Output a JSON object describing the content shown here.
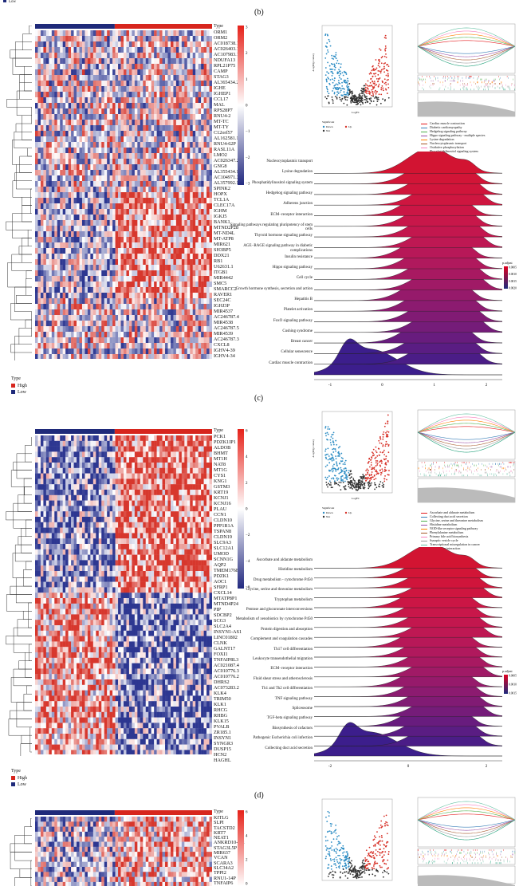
{
  "panels": [
    {
      "label": "(b)",
      "heatmap_type_label": "Type",
      "genes": [
        "ORM1",
        "ORM2",
        "AC018738.1",
        "AC026403.1",
        "AC107983.1",
        "NDUFA13",
        "RPL21P75",
        "CAMP",
        "STAG3",
        "AL365434.2",
        "IGHE",
        "IGHEP1",
        "CCL17",
        "MAL",
        "RPS28P7",
        "RNU4-2",
        "MT-TC",
        "MT-TY",
        "C12orf57",
        "AL162581.1",
        "RNU4-62P",
        "RASL11A",
        "LMO2",
        "AC026347.2",
        "GNG8",
        "AL355434.1",
        "AC104971.3",
        "AL357992.1",
        "SPINK2",
        "HOPX",
        "TCL1A",
        "CLEC17A",
        "IGHM",
        "IGKJ5",
        "BANK1",
        "MTND2P28",
        "MT-ND4L",
        "MT-ATP8",
        "MIR621",
        "SH3BP5",
        "DDX21",
        "RB1",
        "U62631.1",
        "ITGB1",
        "MIR4442",
        "SMC5",
        "SMARCC2",
        "RAVER1",
        "SEC24C",
        "IGHJ3P",
        "MIR4537",
        "AC246787.4",
        "MIR4538",
        "AC246787.5",
        "MIR4539",
        "AC246787.3",
        "CXCL8",
        "IGHV4-39",
        "IGHV4-34"
      ],
      "colorbar_ticks": [
        "3",
        "2",
        "1",
        "0",
        "−1",
        "−2",
        "−3"
      ],
      "legend": {
        "title": "Type",
        "items": [
          "High",
          "Low"
        ]
      },
      "volcano": {
        "xlabel": "LogFC",
        "ylabel": "-Log10(p value)",
        "legend_title": "Significant",
        "items": [
          "Down",
          "Not",
          "Up"
        ]
      },
      "gsea_legend": [
        "Cardiac muscle contraction",
        "Diabetic cardiomyopathy",
        "Hedgehog signaling pathway",
        "Hippo signaling pathway - multiple species",
        "Lysine degradation",
        "Nucleocytoplasmic transport",
        "Oxidative phosphorylation",
        "Phosphatidylinositol signaling system",
        "Proteasome",
        "Ribosome"
      ],
      "ridge": {
        "pathways": [
          "Nucleocytoplasmic transport",
          "Lysine degradation",
          "Phosphatidylinositol signaling system",
          "Hedgehog signaling pathway",
          "Adherens junction",
          "ECM−receptor interaction",
          "Signaling pathways regulating pluripotency of stem cells",
          "Thyroid hormone signaling pathway",
          "AGE−RAGE signaling pathway in diabetic complications",
          "Insulin resistance",
          "Hippo signaling pathway",
          "Cell cycle",
          "Growth hormone synthesis, secretion and action",
          "Hepatitis B",
          "Platelet activation",
          "FoxO signaling pathway",
          "Cushing syndrome",
          "Breast cancer",
          "Cellular senescence",
          "Cardiac muscle contraction"
        ],
        "xticks": [
          "-1",
          "0",
          "1",
          "2"
        ],
        "padj_title": "p.adjust",
        "padj_ticks": [
          "0.0005",
          "0.0010",
          "0.0015",
          "0.0020"
        ]
      }
    },
    {
      "label": "(c)",
      "heatmap_type_label": "Type",
      "genes": [
        "PCK1",
        "PDZK1IP1",
        "ALDOB",
        "BHMT",
        "MT1H",
        "NAT8",
        "MT1G",
        "CYS1",
        "KNG1",
        "GSTM3",
        "KRT19",
        "KCNJ1",
        "KCNJ16",
        "PLAU",
        "CCN1",
        "CLDN10",
        "PPP1R1A",
        "TSPAN8",
        "CLDN19",
        "SLC9A3",
        "SLC12A1",
        "UMOD",
        "SCNN1G",
        "AQP2",
        "TMEM176B",
        "PDZK1",
        "AOC1",
        "SFRP1",
        "CXCL14",
        "MTATP8P1",
        "MTND4P24",
        "PIP",
        "SDCBP2",
        "SCG3",
        "SLC2A4",
        "INSYN1-AS1",
        "LINC01802",
        "CLNK",
        "GALNT17",
        "FOXI1",
        "TNFAIP8L3",
        "AC021087.4",
        "AC010776.3",
        "AC010776.2",
        "DHRS2",
        "AC073283.2",
        "KLK4",
        "TRIM50",
        "KLK1",
        "RHCG",
        "RHBG",
        "KLK15",
        "PVALB",
        "ZR185.1",
        "INSYN1",
        "SYNGR3",
        "DUSP15",
        "HCN2",
        "HAGHL"
      ],
      "colorbar_ticks": [
        "6",
        "4",
        "2",
        "0",
        "−2",
        "−4",
        "−6"
      ],
      "legend": {
        "title": "Type",
        "items": [
          "High",
          "Low"
        ]
      },
      "volcano": {
        "xlabel": "LogFC",
        "ylabel": "-Log10(p value)",
        "legend_title": "Significant",
        "items": [
          "Down",
          "Not",
          "Up"
        ]
      },
      "gsea_legend": [
        "Ascorbate and aldarate metabolism",
        "Collecting duct acid secretion",
        "Glycine, serine and threonine metabolism",
        "Histidine metabolism",
        "NOD-like receptor signaling pathway",
        "Phenylalanine metabolism",
        "Primary bile acid biosynthesis",
        "Synaptic vesicle cycle",
        "Transcriptional misregulation in cancer",
        "Viral protein interaction"
      ],
      "ridge": {
        "pathways": [
          "Ascorbate and aldarate metabolism",
          "Histidine metabolism",
          "Drug metabolism - cytochrome P450",
          "Glycine, serine and threonine metabolism",
          "Tryptophan metabolism",
          "Pentose and glucuronate interconversions",
          "Metabolism of xenobiotics by cytochrome P450",
          "Protein digestion and absorption",
          "Complement and coagulation cascades",
          "Th17 cell differentiation",
          "Leukocyte transendothelial migration",
          "ECM−receptor interaction",
          "Fluid shear stress and atherosclerosis",
          "Th1 and Th2 cell differentiation",
          "TNF signaling pathway",
          "Spliceosome",
          "TGF-beta signaling pathway",
          "Biosynthesis of cofactors",
          "Pathogenic Escherichia coli infection",
          "Collecting duct acid secretion"
        ],
        "xticks": [
          "-2",
          "0",
          "2"
        ],
        "padj_title": "p.adjust",
        "padj_ticks": [
          "0.0005",
          "0.0010",
          "0.0015"
        ]
      }
    },
    {
      "label": "(d)",
      "heatmap_type_label": "Type",
      "genes": [
        "KITLG",
        "SLPI",
        "TACSTD2",
        "KRT7",
        "NEAT1",
        "ANKRD10-IT1",
        "STAG3L5P",
        "MIR637",
        "VCAN",
        "SCARA3",
        "SLC34A2",
        "TPPI2",
        "RNU1-14P",
        "TNFAIP6"
      ],
      "colorbar_ticks": [
        "6",
        "4",
        "2",
        "0"
      ]
    }
  ],
  "top_legend_fragment": "Low",
  "colors": {
    "high": "#d7261e",
    "low": "#1f2a7a",
    "mid": "#ffffff",
    "down": "#2b8cc4",
    "not": "#333333",
    "up": "#d73027"
  }
}
